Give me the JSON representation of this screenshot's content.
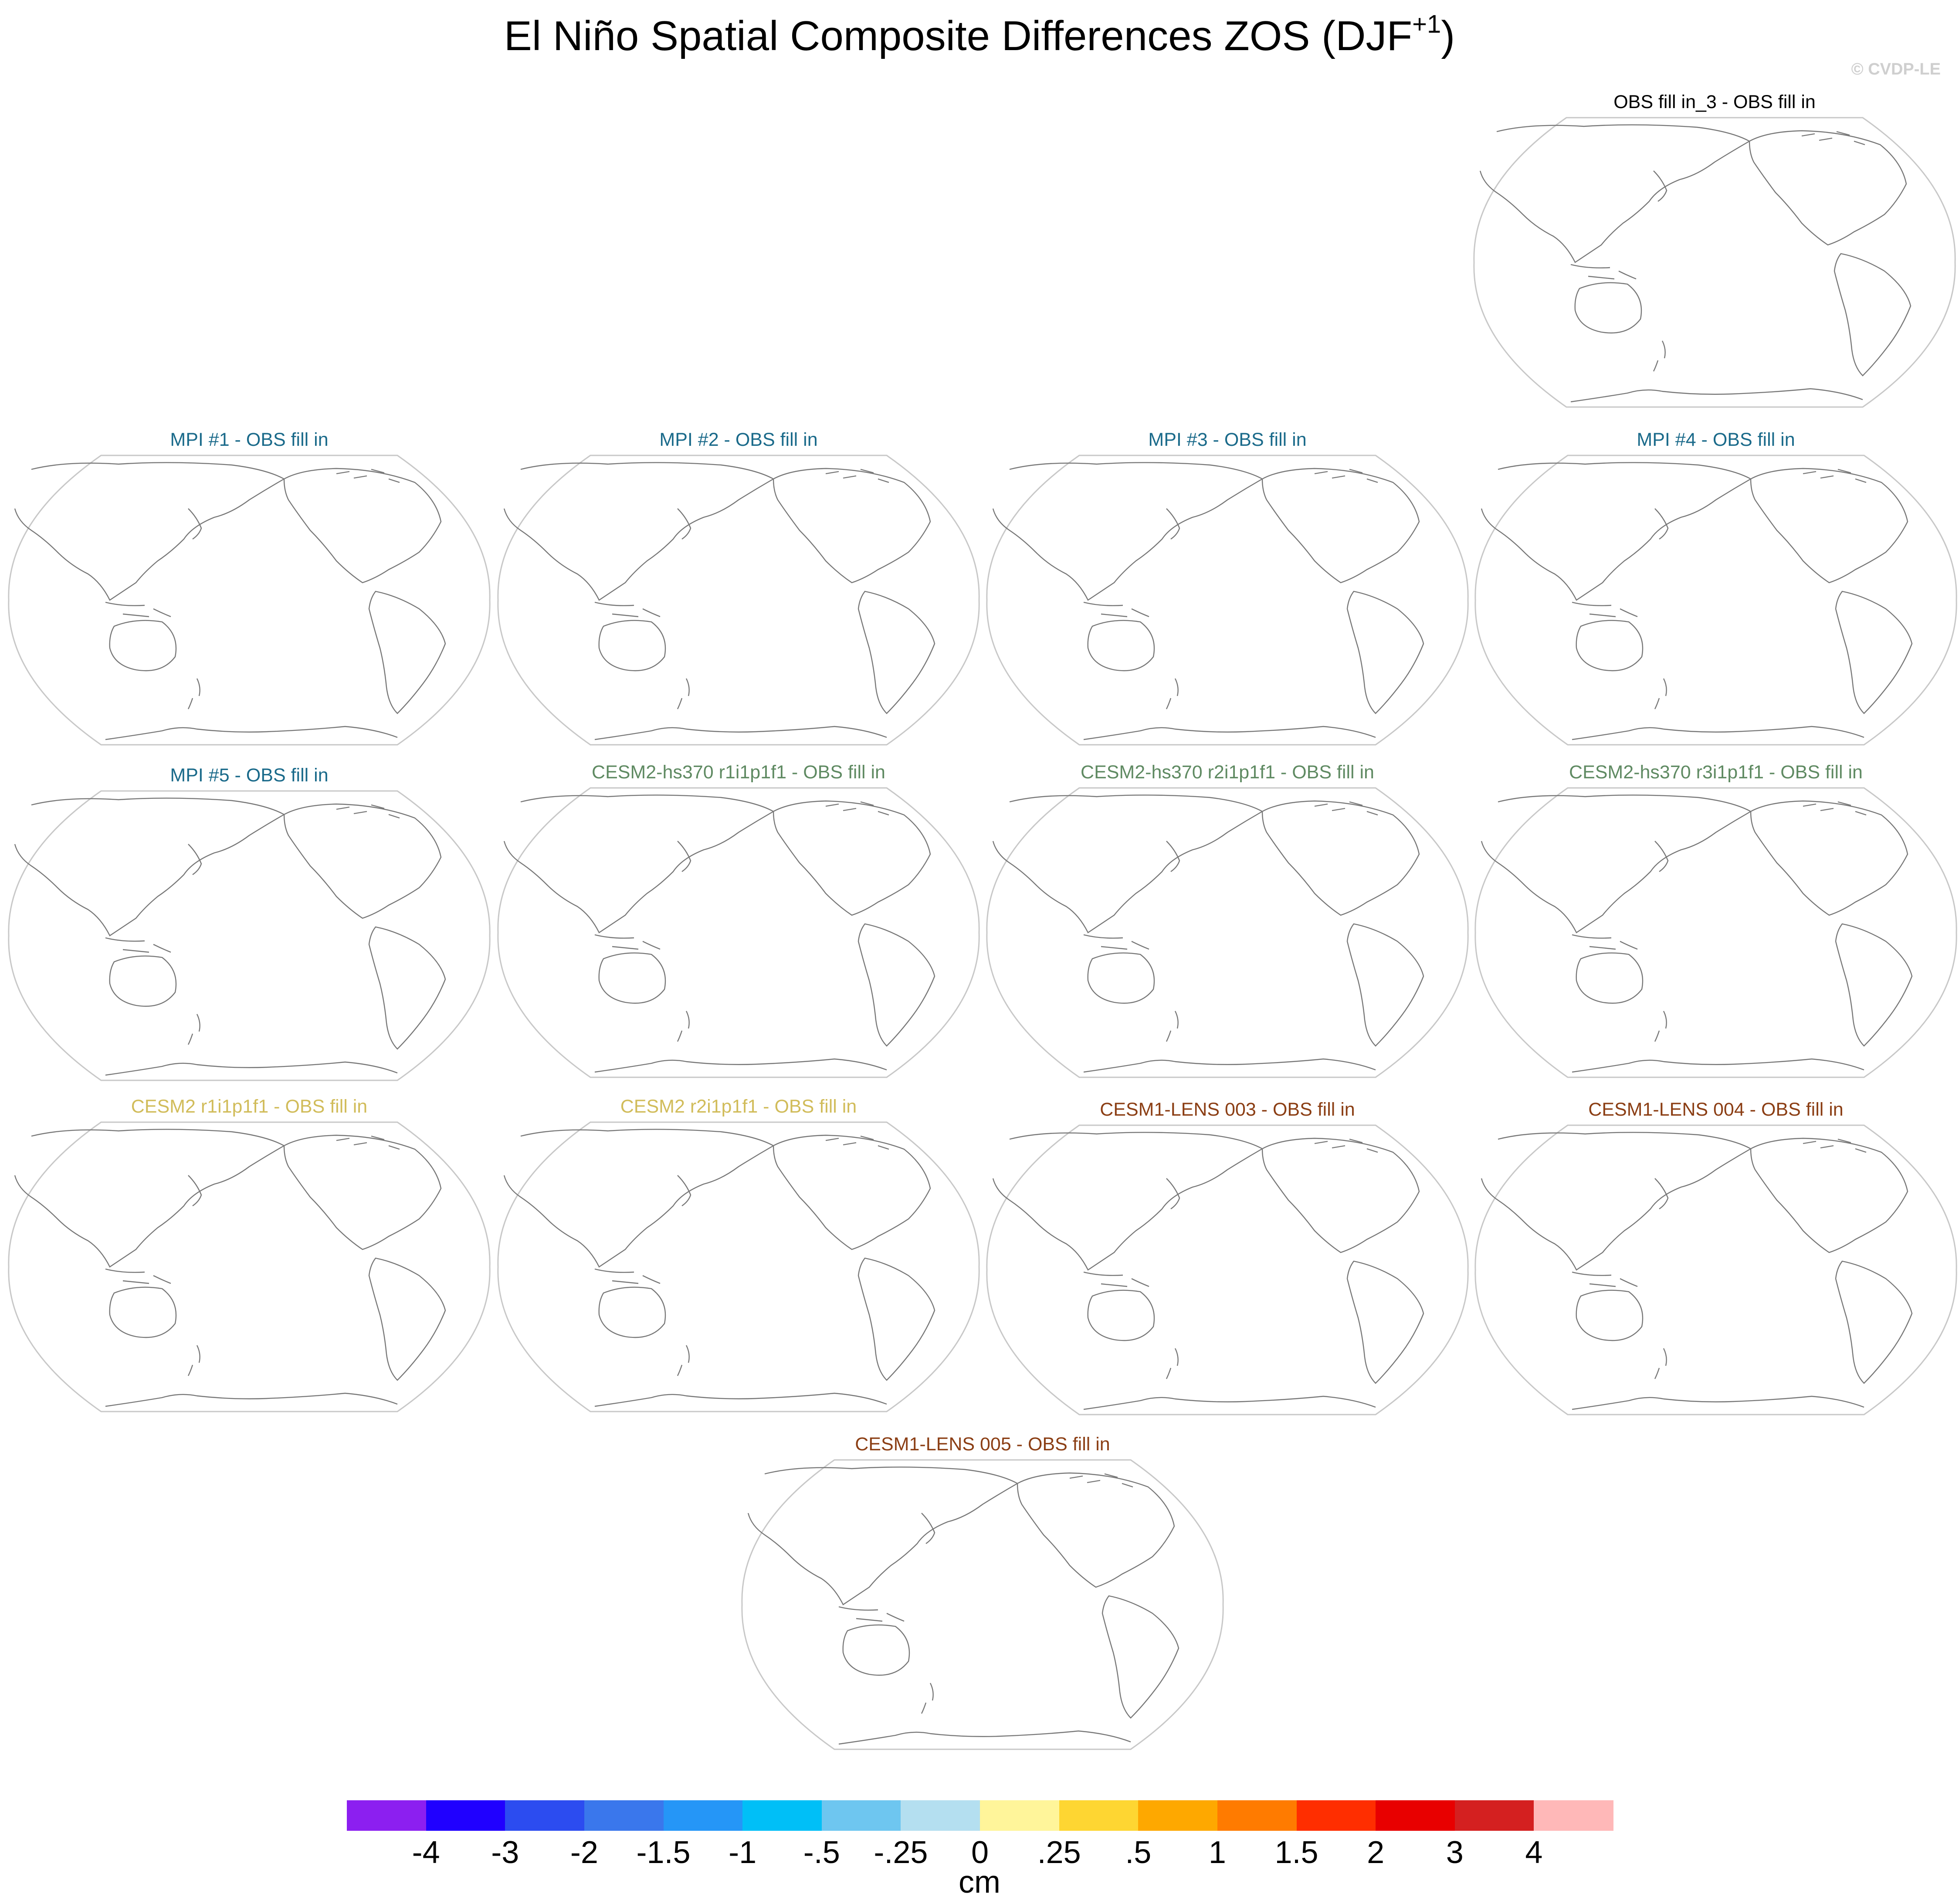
{
  "title": {
    "main": "El Niño Spatial Composite Differences ZOS (DJF",
    "superscript": "+1",
    "close": ")"
  },
  "copyright": "© CVDP-LE",
  "panels": [
    {
      "label": "OBS fill in_3 - OBS fill in",
      "color": "#000000"
    },
    {
      "label": "MPI #1 - OBS fill in",
      "color": "#1a6a8a"
    },
    {
      "label": "MPI #2 - OBS fill in",
      "color": "#1a6a8a"
    },
    {
      "label": "MPI #3 - OBS fill in",
      "color": "#1a6a8a"
    },
    {
      "label": "MPI #4 - OBS fill in",
      "color": "#1a6a8a"
    },
    {
      "label": "MPI #5 - OBS fill in",
      "color": "#1a6a8a"
    },
    {
      "label": "CESM2-hs370 r1i1p1f1 - OBS fill in",
      "color": "#5f8a62"
    },
    {
      "label": "CESM2-hs370 r2i1p1f1 - OBS fill in",
      "color": "#5f8a62"
    },
    {
      "label": "CESM2-hs370 r3i1p1f1 - OBS fill in",
      "color": "#5f8a62"
    },
    {
      "label": "CESM2 r1i1p1f1 - OBS fill in",
      "color": "#d1bc5a"
    },
    {
      "label": "CESM2 r2i1p1f1 - OBS fill in",
      "color": "#d1bc5a"
    },
    {
      "label": "CESM1-LENS 003 - OBS fill in",
      "color": "#8b3e14"
    },
    {
      "label": "CESM1-LENS 004 - OBS fill in",
      "color": "#8b3e14"
    },
    {
      "label": "CESM1-LENS 005 - OBS fill in",
      "color": "#8b3e14"
    }
  ],
  "colorbar": {
    "colors": [
      "#8c1ff0",
      "#2000ff",
      "#2c4cf0",
      "#3a77ec",
      "#2596f7",
      "#00bff7",
      "#6ec6f0",
      "#b4dff0",
      "#fff59a",
      "#fed632",
      "#fea800",
      "#ff7b00",
      "#ff2e00",
      "#e80000",
      "#d42020",
      "#ffb8b8"
    ],
    "labels": [
      "-4",
      "-3",
      "-2",
      "-1.5",
      "-1",
      "-.5",
      "-.25",
      "0",
      ".25",
      ".5",
      "1",
      "1.5",
      "2",
      "3",
      "4"
    ],
    "units": "cm"
  }
}
